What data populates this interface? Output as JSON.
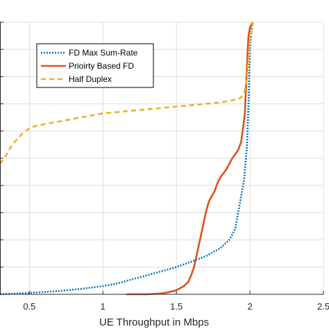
{
  "chart_data": {
    "type": "line",
    "xlabel": "UE Throughput in Mbps",
    "ylabel": "",
    "xlim": [
      0.3,
      2.5
    ],
    "ylim": [
      0,
      1
    ],
    "x_ticks": [
      {
        "value": 0.5,
        "label": "0.5"
      },
      {
        "value": 1,
        "label": "1"
      },
      {
        "value": 1.5,
        "label": "1.5"
      },
      {
        "value": 2,
        "label": "2"
      },
      {
        "value": 2.5,
        "label": "2.5"
      }
    ],
    "y_gridlines": [
      0.1,
      0.2,
      0.3,
      0.4,
      0.5,
      0.6,
      0.7,
      0.8,
      0.9,
      1.0
    ],
    "grid": true,
    "legend_position": "top-left",
    "series": [
      {
        "name": "FD Max Sum-Rate",
        "color": "#0072BD",
        "style": "dotted",
        "x": [
          0.3,
          0.5,
          0.7,
          0.85,
          1.0,
          1.1,
          1.2,
          1.3,
          1.4,
          1.5,
          1.6,
          1.7,
          1.75,
          1.8,
          1.84,
          1.86,
          1.88,
          1.9,
          1.92,
          1.94,
          1.96,
          1.97,
          1.98,
          1.985,
          1.99,
          1.995,
          2.0,
          2.01,
          2.02
        ],
        "y": [
          0.0,
          0.005,
          0.012,
          0.02,
          0.03,
          0.04,
          0.055,
          0.07,
          0.085,
          0.1,
          0.12,
          0.14,
          0.155,
          0.17,
          0.19,
          0.2,
          0.22,
          0.24,
          0.3,
          0.36,
          0.42,
          0.48,
          0.55,
          0.62,
          0.7,
          0.8,
          0.9,
          0.97,
          1.0
        ]
      },
      {
        "name": "Prioirty Based FD",
        "color": "#D95319",
        "style": "solid",
        "x": [
          1.16,
          1.3,
          1.4,
          1.45,
          1.5,
          1.55,
          1.58,
          1.6,
          1.62,
          1.64,
          1.66,
          1.68,
          1.7,
          1.72,
          1.74,
          1.76,
          1.78,
          1.8,
          1.84,
          1.88,
          1.92,
          1.94,
          1.955,
          1.965,
          1.97,
          1.975,
          1.98,
          1.985,
          1.99,
          2.0,
          2.02
        ],
        "y": [
          0.0,
          0.0,
          0.003,
          0.008,
          0.015,
          0.03,
          0.045,
          0.07,
          0.1,
          0.15,
          0.2,
          0.25,
          0.3,
          0.34,
          0.36,
          0.38,
          0.41,
          0.43,
          0.46,
          0.5,
          0.53,
          0.56,
          0.62,
          0.66,
          0.72,
          0.78,
          0.84,
          0.9,
          0.95,
          0.98,
          1.0
        ]
      },
      {
        "name": "Half Duplex",
        "color": "#EDB120",
        "style": "dashed",
        "x": [
          0.3,
          0.33,
          0.36,
          0.4,
          0.45,
          0.5,
          0.55,
          0.6,
          0.65,
          0.7,
          0.8,
          0.9,
          1.0,
          1.1,
          1.2,
          1.3,
          1.4,
          1.5,
          1.6,
          1.7,
          1.8,
          1.85,
          1.9,
          1.93,
          1.95,
          1.96,
          1.97,
          1.98,
          1.99,
          2.0,
          2.02
        ],
        "y": [
          0.48,
          0.5,
          0.53,
          0.56,
          0.59,
          0.61,
          0.62,
          0.625,
          0.63,
          0.635,
          0.645,
          0.655,
          0.665,
          0.67,
          0.675,
          0.68,
          0.685,
          0.69,
          0.695,
          0.7,
          0.705,
          0.71,
          0.715,
          0.72,
          0.73,
          0.74,
          0.76,
          0.8,
          0.86,
          0.93,
          1.0
        ]
      }
    ]
  }
}
